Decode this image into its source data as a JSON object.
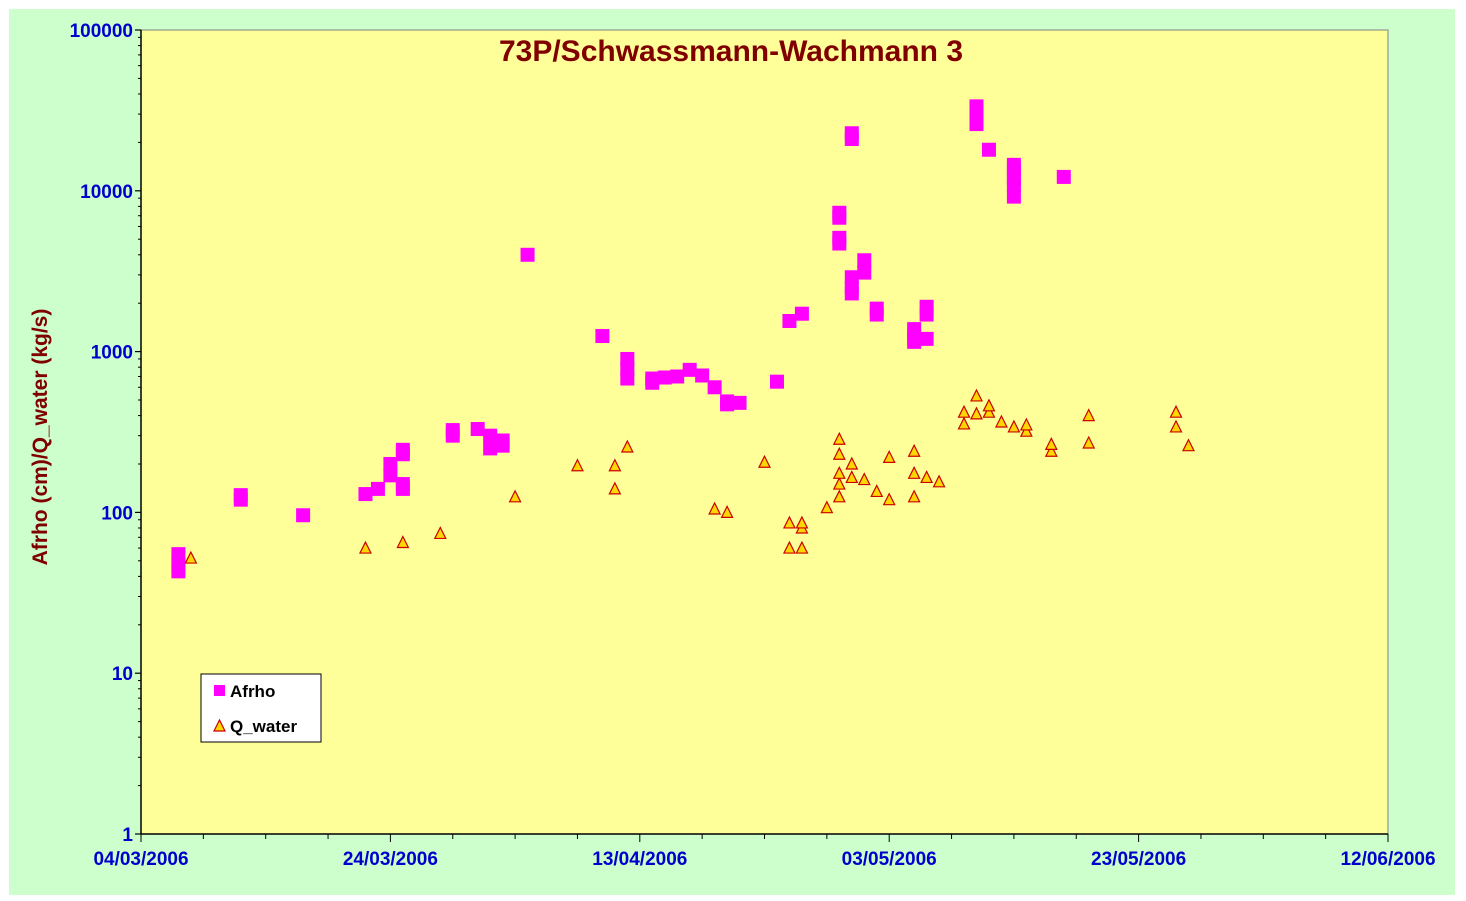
{
  "chart_data": {
    "type": "scatter",
    "title": "73P/Schwassmann-Wachmann  3",
    "ylabel": "Afrho (cm)/Q_water (kg/s)",
    "xlabel": "",
    "yscale": "log",
    "ylim": [
      1,
      100000
    ],
    "xlim": [
      "2006-03-04",
      "2006-06-12"
    ],
    "yticks": [
      "1",
      "10",
      "100",
      "1000",
      "10000",
      "100000"
    ],
    "xticks": [
      "04/03/2006",
      "24/03/2006",
      "13/04/2006",
      "03/05/2006",
      "23/05/2006",
      "12/06/2006"
    ],
    "legend": "lower-left",
    "grid": false,
    "plot_background": "#ffff99",
    "chart_background": "#ccffcc",
    "series": [
      {
        "name": "Afrho",
        "marker": "square",
        "color": "#ff00ff",
        "points": [
          [
            "2006-03-07",
            43
          ],
          [
            "2006-03-07",
            48
          ],
          [
            "2006-03-07",
            55
          ],
          [
            "2006-03-12",
            120
          ],
          [
            "2006-03-12",
            128
          ],
          [
            "2006-03-17",
            96
          ],
          [
            "2006-03-22",
            130
          ],
          [
            "2006-03-23",
            140
          ],
          [
            "2006-03-24",
            170
          ],
          [
            "2006-03-24",
            200
          ],
          [
            "2006-03-25",
            140
          ],
          [
            "2006-03-25",
            150
          ],
          [
            "2006-03-25",
            230
          ],
          [
            "2006-03-25",
            245
          ],
          [
            "2006-03-29",
            300
          ],
          [
            "2006-03-29",
            325
          ],
          [
            "2006-03-31",
            330
          ],
          [
            "2006-04-01",
            300
          ],
          [
            "2006-04-01",
            250
          ],
          [
            "2006-04-02",
            260
          ],
          [
            "2006-04-02",
            280
          ],
          [
            "2006-04-04",
            4000
          ],
          [
            "2006-04-10",
            1250
          ],
          [
            "2006-04-12",
            900
          ],
          [
            "2006-04-12",
            780
          ],
          [
            "2006-04-12",
            680
          ],
          [
            "2006-04-14",
            640
          ],
          [
            "2006-04-14",
            680
          ],
          [
            "2006-04-15",
            690
          ],
          [
            "2006-04-16",
            700
          ],
          [
            "2006-04-17",
            770
          ],
          [
            "2006-04-18",
            710
          ],
          [
            "2006-04-19",
            600
          ],
          [
            "2006-04-20",
            490
          ],
          [
            "2006-04-20",
            470
          ],
          [
            "2006-04-21",
            480
          ],
          [
            "2006-04-24",
            650
          ],
          [
            "2006-04-25",
            1550
          ],
          [
            "2006-04-26",
            1720
          ],
          [
            "2006-04-29",
            4700
          ],
          [
            "2006-04-29",
            5100
          ],
          [
            "2006-04-29",
            6800
          ],
          [
            "2006-04-29",
            7300
          ],
          [
            "2006-04-30",
            2300
          ],
          [
            "2006-04-30",
            2500
          ],
          [
            "2006-04-30",
            2900
          ],
          [
            "2006-04-30",
            21000
          ],
          [
            "2006-04-30",
            22800
          ],
          [
            "2006-05-01",
            3100
          ],
          [
            "2006-05-01",
            3700
          ],
          [
            "2006-05-02",
            1700
          ],
          [
            "2006-05-02",
            1850
          ],
          [
            "2006-05-05",
            1150
          ],
          [
            "2006-05-05",
            1250
          ],
          [
            "2006-05-05",
            1380
          ],
          [
            "2006-05-06",
            1200
          ],
          [
            "2006-05-06",
            1700
          ],
          [
            "2006-05-06",
            1900
          ],
          [
            "2006-05-10",
            26000
          ],
          [
            "2006-05-10",
            28500
          ],
          [
            "2006-05-10",
            31000
          ],
          [
            "2006-05-10",
            33500
          ],
          [
            "2006-05-11",
            18000
          ],
          [
            "2006-05-13",
            9200
          ],
          [
            "2006-05-13",
            10800
          ],
          [
            "2006-05-13",
            12000
          ],
          [
            "2006-05-13",
            13500
          ],
          [
            "2006-05-13",
            14500
          ],
          [
            "2006-05-17",
            12200
          ]
        ]
      },
      {
        "name": "Q_water",
        "marker": "triangle",
        "color": "#ffd700",
        "edgecolor": "#cc0000",
        "points": [
          [
            "2006-03-08",
            52
          ],
          [
            "2006-03-22",
            60
          ],
          [
            "2006-03-25",
            65
          ],
          [
            "2006-03-28",
            74
          ],
          [
            "2006-04-03",
            125
          ],
          [
            "2006-04-08",
            195
          ],
          [
            "2006-04-11",
            140
          ],
          [
            "2006-04-11",
            195
          ],
          [
            "2006-04-12",
            255
          ],
          [
            "2006-04-19",
            105
          ],
          [
            "2006-04-20",
            100
          ],
          [
            "2006-04-23",
            205
          ],
          [
            "2006-04-25",
            60
          ],
          [
            "2006-04-25",
            86
          ],
          [
            "2006-04-26",
            60
          ],
          [
            "2006-04-26",
            80
          ],
          [
            "2006-04-26",
            86
          ],
          [
            "2006-04-28",
            107
          ],
          [
            "2006-04-29",
            125
          ],
          [
            "2006-04-29",
            150
          ],
          [
            "2006-04-29",
            175
          ],
          [
            "2006-04-29",
            230
          ],
          [
            "2006-04-29",
            285
          ],
          [
            "2006-04-30",
            165
          ],
          [
            "2006-04-30",
            200
          ],
          [
            "2006-05-01",
            160
          ],
          [
            "2006-05-02",
            135
          ],
          [
            "2006-05-03",
            120
          ],
          [
            "2006-05-03",
            220
          ],
          [
            "2006-05-05",
            125
          ],
          [
            "2006-05-05",
            175
          ],
          [
            "2006-05-05",
            240
          ],
          [
            "2006-05-06",
            165
          ],
          [
            "2006-05-07",
            155
          ],
          [
            "2006-05-09",
            355
          ],
          [
            "2006-05-09",
            420
          ],
          [
            "2006-05-10",
            410
          ],
          [
            "2006-05-10",
            530
          ],
          [
            "2006-05-11",
            420
          ],
          [
            "2006-05-11",
            460
          ],
          [
            "2006-05-12",
            365
          ],
          [
            "2006-05-13",
            340
          ],
          [
            "2006-05-14",
            320
          ],
          [
            "2006-05-14",
            350
          ],
          [
            "2006-05-16",
            240
          ],
          [
            "2006-05-16",
            265
          ],
          [
            "2006-05-19",
            270
          ],
          [
            "2006-05-19",
            400
          ],
          [
            "2006-05-26",
            340
          ],
          [
            "2006-05-26",
            420
          ],
          [
            "2006-05-27",
            260
          ]
        ]
      }
    ]
  }
}
